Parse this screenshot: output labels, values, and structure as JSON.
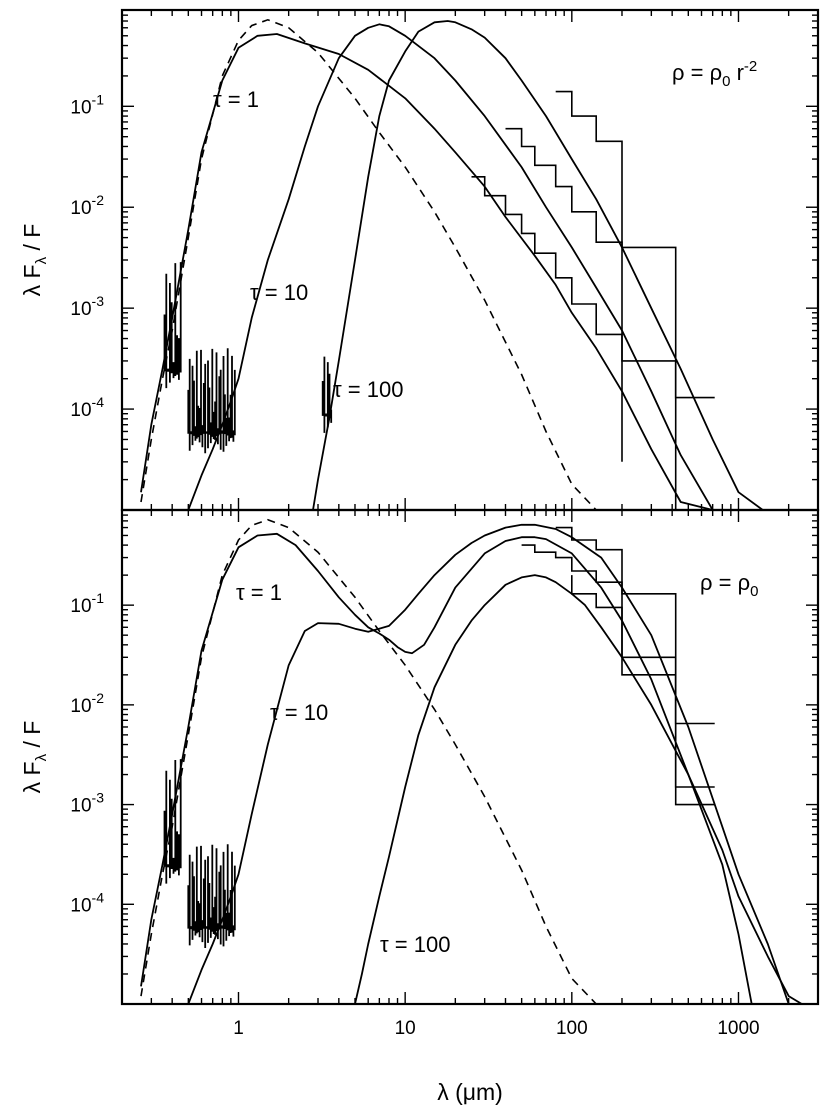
{
  "chart_data": [
    {
      "panel": "top",
      "type": "line",
      "annotation": {
        "pre": "ρ = ρ",
        "sub": "0",
        "mid": " r",
        "sup": "-2"
      },
      "ylabel": {
        "main": "λ F",
        "sub": "λ",
        "tail": " / F"
      },
      "xscale": "log",
      "yscale": "log",
      "xlim": [
        0.2,
        3000
      ],
      "ylim": [
        1e-05,
        0.9
      ],
      "yticks": [
        {
          "v": 0.1,
          "e": "-1"
        },
        {
          "v": 0.01,
          "e": "-2"
        },
        {
          "v": 0.001,
          "e": "-3"
        },
        {
          "v": 0.0001,
          "e": "-4"
        }
      ],
      "dashed": {
        "name": "",
        "x": [
          0.26,
          0.3,
          0.35,
          0.4,
          0.5,
          0.6,
          0.8,
          1.0,
          1.2,
          1.5,
          2,
          3,
          5,
          7,
          10,
          15,
          20,
          30,
          50,
          70,
          100,
          140
        ],
        "y": [
          1.2e-05,
          5e-05,
          0.0002,
          0.0006,
          0.005,
          0.03,
          0.2,
          0.45,
          0.63,
          0.72,
          0.6,
          0.34,
          0.12,
          0.055,
          0.025,
          0.009,
          0.004,
          0.0012,
          0.00022,
          6e-05,
          1.8e-05,
          1e-05
        ]
      },
      "series": [
        {
          "label": "τ = 1",
          "x": [
            0.26,
            0.3,
            0.35,
            0.4,
            0.5,
            0.6,
            0.8,
            1,
            1.3,
            1.7,
            2.5,
            4,
            6,
            10,
            15,
            20,
            30,
            40,
            60,
            80,
            100,
            140,
            200,
            300,
            450,
            700,
            1000,
            1500
          ],
          "y": [
            1.5e-05,
            7e-05,
            0.00025,
            0.0008,
            0.006,
            0.035,
            0.18,
            0.38,
            0.5,
            0.52,
            0.42,
            0.33,
            0.23,
            0.12,
            0.06,
            0.035,
            0.016,
            0.008,
            0.0033,
            0.0017,
            0.0009,
            0.0004,
            0.00015,
            4e-05,
            1.2e-05,
            1e-05,
            1e-05,
            1e-05
          ]
        },
        {
          "label": "τ = 10",
          "x": [
            0.5,
            0.6,
            0.7,
            0.8,
            0.9,
            1,
            1.2,
            1.5,
            2,
            2.5,
            3,
            4,
            5,
            6,
            7,
            8,
            10,
            15,
            20,
            30,
            50,
            70,
            100,
            140,
            200,
            300,
            450,
            700
          ],
          "y": [
            1e-05,
            2.2e-05,
            4e-05,
            7e-05,
            0.00012,
            0.0002,
            0.0008,
            0.003,
            0.012,
            0.04,
            0.1,
            0.3,
            0.5,
            0.6,
            0.65,
            0.62,
            0.5,
            0.3,
            0.18,
            0.08,
            0.025,
            0.01,
            0.004,
            0.0016,
            0.0006,
            0.00015,
            3.5e-05,
            1e-05
          ]
        },
        {
          "label": "τ = 100",
          "x": [
            2.8,
            3,
            3.5,
            4,
            5,
            6,
            7,
            8,
            10,
            12,
            15,
            18,
            20,
            25,
            30,
            40,
            50,
            70,
            100,
            140,
            200,
            300,
            450,
            700,
            1000,
            1400
          ],
          "y": [
            1e-05,
            2e-05,
            8e-05,
            0.0003,
            0.003,
            0.02,
            0.08,
            0.18,
            0.35,
            0.55,
            0.68,
            0.7,
            0.68,
            0.58,
            0.48,
            0.3,
            0.18,
            0.08,
            0.03,
            0.012,
            0.004,
            0.001,
            0.00025,
            5e-05,
            1.5e-05,
            1e-05
          ]
        }
      ],
      "hist": [
        [
          [
            25,
            0.02
          ],
          [
            30,
            0.02
          ],
          [
            30,
            0.013
          ],
          [
            40,
            0.013
          ],
          [
            40,
            0.0085
          ],
          [
            50,
            0.0085
          ],
          [
            50,
            0.0055
          ],
          [
            60,
            0.0055
          ],
          [
            60,
            0.0035
          ],
          [
            80,
            0.0035
          ],
          [
            80,
            0.002
          ],
          [
            100,
            0.002
          ],
          [
            100,
            0.0011
          ],
          [
            140,
            0.0011
          ],
          [
            140,
            0.00055
          ],
          [
            200,
            0.00055
          ],
          [
            200,
            0.00013
          ],
          [
            200,
            3e-05
          ]
        ],
        [
          [
            40,
            0.06
          ],
          [
            50,
            0.06
          ],
          [
            50,
            0.04
          ],
          [
            60,
            0.04
          ],
          [
            60,
            0.026
          ],
          [
            80,
            0.026
          ],
          [
            80,
            0.016
          ],
          [
            100,
            0.016
          ],
          [
            100,
            0.009
          ],
          [
            140,
            0.009
          ],
          [
            140,
            0.0045
          ],
          [
            200,
            0.0045
          ],
          [
            200,
            0.0013
          ],
          [
            200,
            0.0003
          ],
          [
            420,
            0.0003
          ],
          [
            420,
            1e-05
          ]
        ],
        [
          [
            80,
            0.14
          ],
          [
            100,
            0.14
          ],
          [
            100,
            0.08
          ],
          [
            140,
            0.08
          ],
          [
            140,
            0.045
          ],
          [
            200,
            0.045
          ],
          [
            200,
            0.02
          ],
          [
            200,
            0.004
          ],
          [
            420,
            0.004
          ],
          [
            420,
            0.00013
          ],
          [
            720,
            0.00013
          ]
        ]
      ]
    },
    {
      "panel": "bottom",
      "type": "line",
      "annotation": {
        "pre": "ρ = ρ",
        "sub": "0",
        "mid": "",
        "sup": ""
      },
      "ylabel": {
        "main": "λ F",
        "sub": "λ",
        "tail": " / F"
      },
      "xscale": "log",
      "yscale": "log",
      "xlim": [
        0.2,
        3000
      ],
      "ylim": [
        1e-05,
        0.9
      ],
      "yticks": [
        {
          "v": 0.1,
          "e": "-1"
        },
        {
          "v": 0.01,
          "e": "-2"
        },
        {
          "v": 0.001,
          "e": "-3"
        },
        {
          "v": 0.0001,
          "e": "-4"
        }
      ],
      "xticks": [
        {
          "v": 1,
          "t": "1"
        },
        {
          "v": 10,
          "t": "10"
        },
        {
          "v": 100,
          "t": "100"
        },
        {
          "v": 1000,
          "t": "1000"
        }
      ],
      "xlabel": "λ (μm)",
      "dashed": {
        "name": "",
        "x": [
          0.26,
          0.3,
          0.35,
          0.4,
          0.5,
          0.6,
          0.8,
          1.0,
          1.2,
          1.5,
          2,
          3,
          5,
          7,
          10,
          15,
          20,
          30,
          50,
          70,
          100,
          140
        ],
        "y": [
          1.2e-05,
          5e-05,
          0.0002,
          0.0006,
          0.005,
          0.03,
          0.2,
          0.45,
          0.63,
          0.72,
          0.6,
          0.34,
          0.12,
          0.055,
          0.025,
          0.009,
          0.004,
          0.0012,
          0.00022,
          6e-05,
          1.8e-05,
          1e-05
        ]
      },
      "series": [
        {
          "label": "τ = 1",
          "x": [
            0.26,
            0.3,
            0.35,
            0.4,
            0.5,
            0.6,
            0.8,
            1,
            1.3,
            1.7,
            2.2,
            3,
            4,
            5,
            6,
            7,
            8,
            9,
            10,
            11,
            13,
            15,
            20,
            30,
            40,
            50,
            60,
            70,
            100,
            150,
            200,
            300,
            500,
            800,
            1000,
            1200
          ],
          "y": [
            1.5e-05,
            7e-05,
            0.00025,
            0.0008,
            0.006,
            0.035,
            0.18,
            0.38,
            0.5,
            0.52,
            0.4,
            0.22,
            0.12,
            0.08,
            0.06,
            0.052,
            0.045,
            0.038,
            0.034,
            0.033,
            0.04,
            0.06,
            0.15,
            0.33,
            0.44,
            0.48,
            0.48,
            0.46,
            0.33,
            0.15,
            0.07,
            0.018,
            0.002,
            0.00025,
            5e-05,
            1e-05
          ]
        },
        {
          "label": "τ = 10",
          "x": [
            0.5,
            0.6,
            0.7,
            0.8,
            0.9,
            1,
            1.2,
            1.5,
            2,
            2.5,
            3,
            4,
            5,
            6,
            8,
            10,
            12,
            15,
            20,
            25,
            30,
            40,
            50,
            60,
            80,
            100,
            150,
            200,
            300,
            500,
            800,
            1000,
            1500,
            2000
          ],
          "y": [
            1e-05,
            2.2e-05,
            4e-05,
            7e-05,
            0.00012,
            0.0002,
            0.0008,
            0.004,
            0.025,
            0.055,
            0.066,
            0.065,
            0.058,
            0.054,
            0.062,
            0.09,
            0.13,
            0.2,
            0.32,
            0.42,
            0.5,
            0.6,
            0.64,
            0.64,
            0.58,
            0.48,
            0.3,
            0.15,
            0.05,
            0.006,
            0.0006,
            0.0002,
            4e-05,
            1e-05
          ]
        },
        {
          "label": "τ = 100",
          "x": [
            5,
            5.5,
            6,
            7,
            8,
            10,
            12,
            15,
            20,
            25,
            30,
            40,
            50,
            60,
            70,
            80,
            100,
            120,
            150,
            200,
            300,
            500,
            800,
            1000,
            1500,
            2000,
            2400
          ],
          "y": [
            1e-05,
            2e-05,
            4e-05,
            0.00012,
            0.0003,
            0.0015,
            0.005,
            0.015,
            0.04,
            0.07,
            0.1,
            0.16,
            0.19,
            0.2,
            0.19,
            0.17,
            0.13,
            0.1,
            0.06,
            0.03,
            0.01,
            0.002,
            0.00035,
            0.00012,
            3e-05,
            1.2e-05,
            1e-05
          ]
        }
      ],
      "hist": [
        [
          [
            100,
            0.2
          ],
          [
            100,
            0.13
          ],
          [
            140,
            0.13
          ],
          [
            140,
            0.095
          ],
          [
            200,
            0.095
          ],
          [
            200,
            0.04
          ],
          [
            200,
            0.02
          ],
          [
            420,
            0.02
          ],
          [
            420,
            0.0015
          ],
          [
            720,
            0.0015
          ]
        ],
        [
          [
            50,
            0.4
          ],
          [
            60,
            0.4
          ],
          [
            60,
            0.34
          ],
          [
            80,
            0.34
          ],
          [
            80,
            0.3
          ],
          [
            100,
            0.3
          ],
          [
            100,
            0.22
          ],
          [
            140,
            0.22
          ],
          [
            140,
            0.17
          ],
          [
            200,
            0.17
          ],
          [
            200,
            0.08
          ],
          [
            200,
            0.03
          ],
          [
            420,
            0.03
          ],
          [
            420,
            0.001
          ],
          [
            720,
            0.001
          ]
        ],
        [
          [
            80,
            0.6
          ],
          [
            100,
            0.6
          ],
          [
            100,
            0.45
          ],
          [
            140,
            0.45
          ],
          [
            140,
            0.36
          ],
          [
            200,
            0.36
          ],
          [
            200,
            0.13
          ],
          [
            420,
            0.13
          ],
          [
            420,
            0.0065
          ],
          [
            720,
            0.0065
          ]
        ]
      ]
    }
  ]
}
